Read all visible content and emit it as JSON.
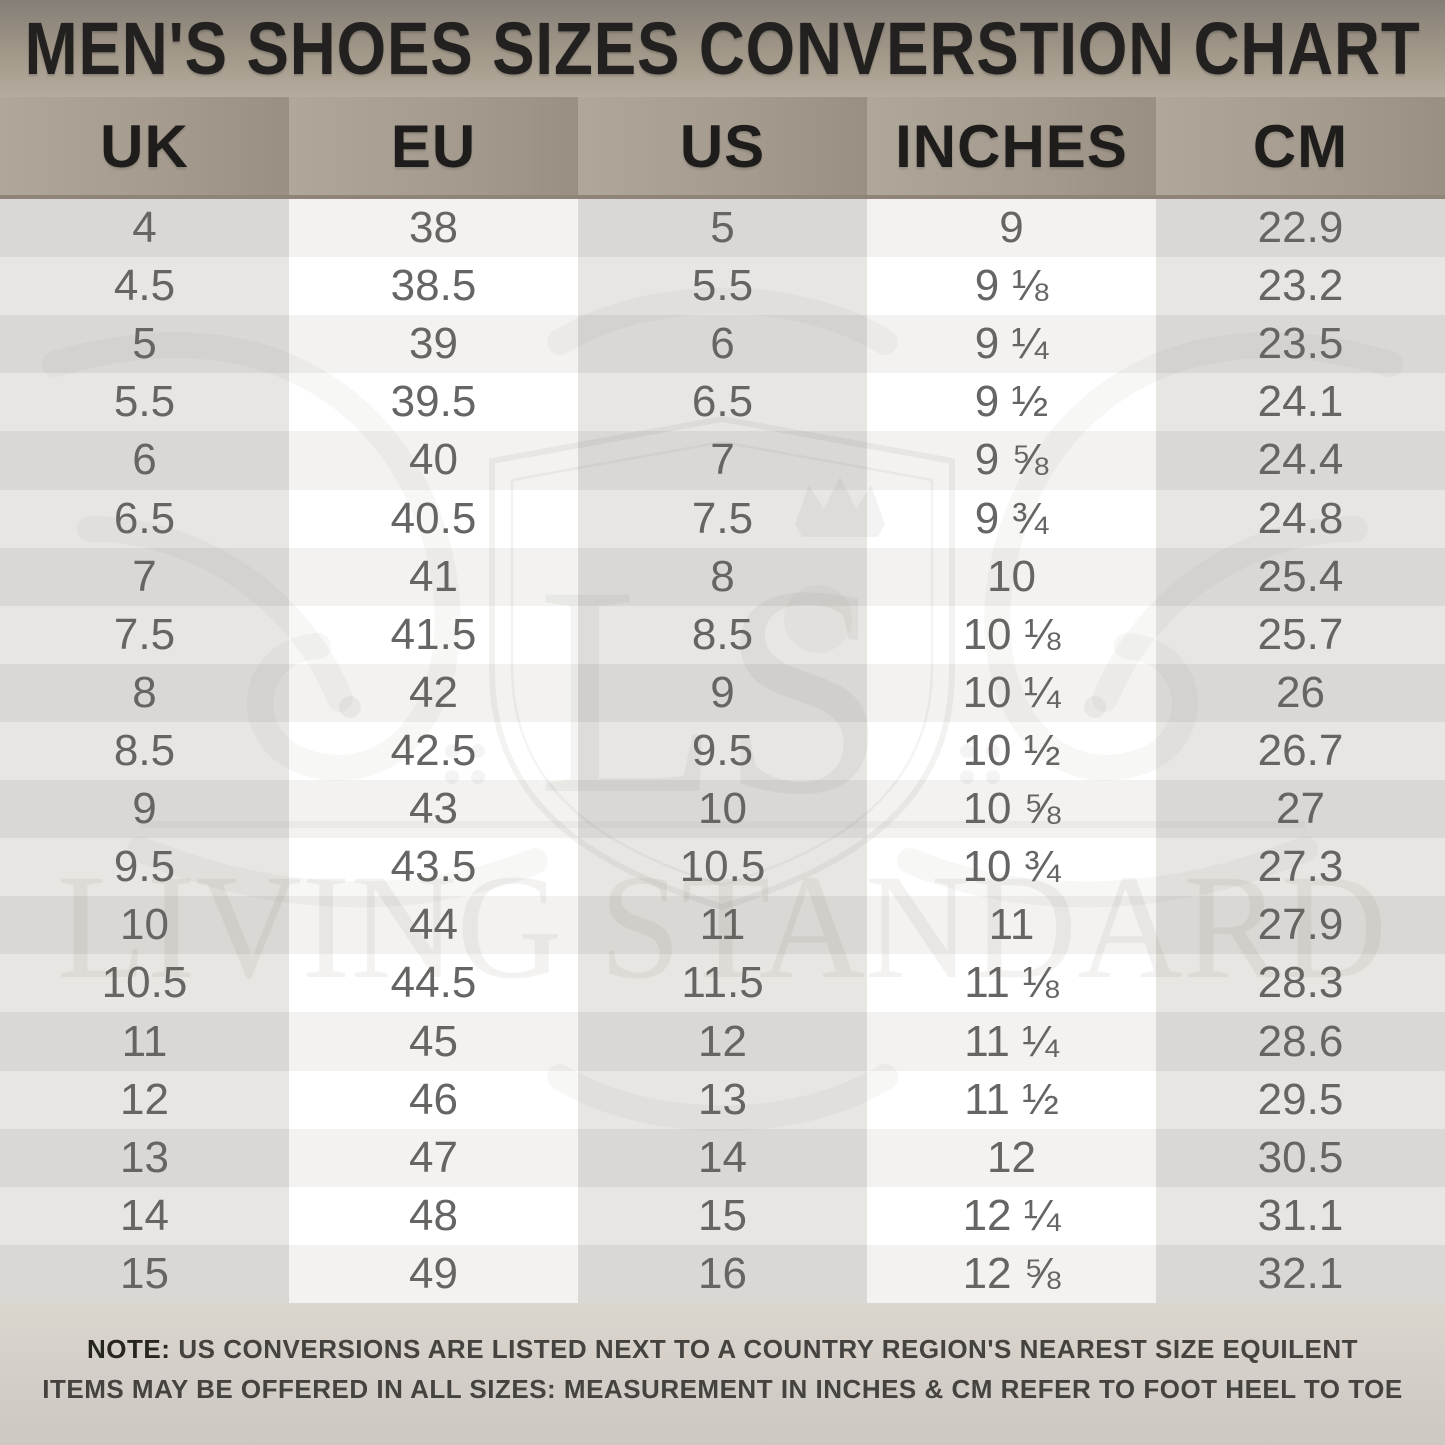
{
  "chart_data": {
    "type": "table",
    "title": "MEN'S SHOES SIZES CONVERSTION CHART",
    "columns": [
      "UK",
      "EU",
      "US",
      "INCHES",
      "CM"
    ],
    "rows": [
      [
        "4",
        "38",
        "5",
        "9",
        "22.9"
      ],
      [
        "4.5",
        "38.5",
        "5.5",
        "9 ⅛",
        "23.2"
      ],
      [
        "5",
        "39",
        "6",
        "9 ¼",
        "23.5"
      ],
      [
        "5.5",
        "39.5",
        "6.5",
        "9 ½",
        "24.1"
      ],
      [
        "6",
        "40",
        "7",
        "9 ⅝",
        "24.4"
      ],
      [
        "6.5",
        "40.5",
        "7.5",
        "9 ¾",
        "24.8"
      ],
      [
        "7",
        "41",
        "8",
        "10",
        "25.4"
      ],
      [
        "7.5",
        "41.5",
        "8.5",
        "10 ⅛",
        "25.7"
      ],
      [
        "8",
        "42",
        "9",
        "10 ¼",
        "26"
      ],
      [
        "8.5",
        "42.5",
        "9.5",
        "10 ½",
        "26.7"
      ],
      [
        "9",
        "43",
        "10",
        "10 ⅝",
        "27"
      ],
      [
        "9.5",
        "43.5",
        "10.5",
        "10 ¾",
        "27.3"
      ],
      [
        "10",
        "44",
        "11",
        "11",
        "27.9"
      ],
      [
        "10.5",
        "44.5",
        "11.5",
        "11 ⅛",
        "28.3"
      ],
      [
        "11",
        "45",
        "12",
        "11 ¼",
        "28.6"
      ],
      [
        "12",
        "46",
        "13",
        "11 ½",
        "29.5"
      ],
      [
        "13",
        "47",
        "14",
        "12",
        "30.5"
      ],
      [
        "14",
        "48",
        "15",
        "12 ¼",
        "31.1"
      ],
      [
        "15",
        "49",
        "16",
        "12 ⅝",
        "32.1"
      ]
    ],
    "legend_position": "none",
    "grid": "striped-rows-and-columns"
  },
  "watermark": {
    "monogram": "LS",
    "text": "LIVING STANDARD"
  },
  "note": {
    "label": "NOTE:",
    "line1": "US CONVERSIONS ARE LISTED NEXT TO A COUNTRY REGION'S NEAREST SIZE EQUILENT",
    "line2": "ITEMS MAY BE OFFERED IN ALL SIZES: MEASUREMENT IN INCHES & CM REFER TO FOOT HEEL TO TOE"
  },
  "colors": {
    "header_taupe_light": "#b0a79b",
    "header_taupe_dark": "#998f83",
    "title_band_top": "#847e76",
    "title_band_bottom": "#b5ac9f",
    "header_text": "#1f1d1b",
    "body_text": "#676563",
    "stripe_gray_dark": "#dad8d5",
    "stripe_gray_light": "#e8e6e3",
    "stripe_white_dark": "#f3f2f0",
    "stripe_white_light": "#ffffff",
    "note_bg": "#d5d0c8",
    "note_text": "#454340",
    "watermark_gray": "#6f6a62"
  }
}
